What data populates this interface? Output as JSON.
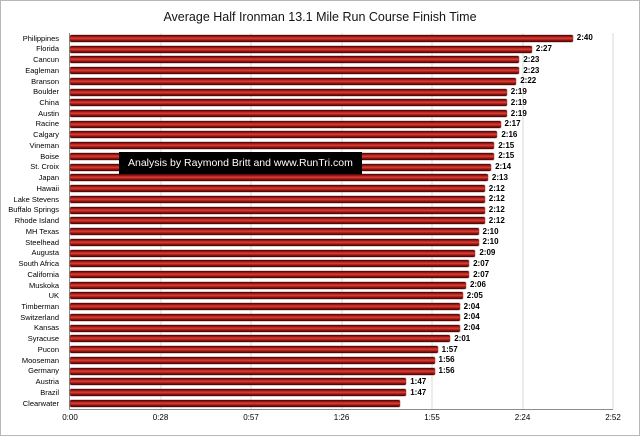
{
  "chart_data": {
    "type": "bar",
    "orientation": "horizontal",
    "title": "Average Half Ironman 13.1 Mile Run Course Finish Time",
    "annotation": "Analysis by Raymond Britt and www.RunTri.com",
    "categories": [
      "Philippines",
      "Florida",
      "Cancun",
      "Eagleman",
      "Branson",
      "Boulder",
      "China",
      "Austin",
      "Racine",
      "Calgary",
      "Vineman",
      "Boise",
      "St. Croix",
      "Japan",
      "Hawaii",
      "Lake Stevens",
      "Buffalo Springs",
      "Rhode Island",
      "MH Texas",
      "Steelhead",
      "Augusta",
      "South Africa",
      "California",
      "Muskoka",
      "UK",
      "Timberman",
      "Switzerland",
      "Kansas",
      "Syracuse",
      "Pucon",
      "Mooseman",
      "Germany",
      "Austria",
      "Brazil",
      "Clearwater"
    ],
    "value_labels": [
      "2:40",
      "2:27",
      "2:23",
      "2:23",
      "2:22",
      "2:19",
      "2:19",
      "2:19",
      "2:17",
      "2:16",
      "2:15",
      "2:15",
      "2:14",
      "2:13",
      "2:12",
      "2:12",
      "2:12",
      "2:12",
      "2:10",
      "2:10",
      "2:09",
      "2:07",
      "2:07",
      "2:06",
      "2:05",
      "2:04",
      "2:04",
      "2:04",
      "2:01",
      "1:57",
      "1:56",
      "1:56",
      "1:47",
      "1:47",
      ""
    ],
    "values_minutes": [
      160,
      147,
      143,
      143,
      142,
      139,
      139,
      139,
      137,
      136,
      135,
      135,
      134,
      133,
      132,
      132,
      132,
      132,
      130,
      130,
      129,
      127,
      127,
      126,
      125,
      124,
      124,
      124,
      121,
      117,
      116,
      116,
      107,
      107,
      105
    ],
    "x_ticks": [
      "0:00",
      "0:28",
      "0:57",
      "1:26",
      "1:55",
      "2:24",
      "2:52"
    ],
    "x_max_minutes": 172.8,
    "xlabel": "",
    "ylabel": "",
    "grid": true,
    "legend_position": "none",
    "bar_color": "#9e1513",
    "annotation_bg": "#000000",
    "annotation_text_color": "#ffffff"
  }
}
